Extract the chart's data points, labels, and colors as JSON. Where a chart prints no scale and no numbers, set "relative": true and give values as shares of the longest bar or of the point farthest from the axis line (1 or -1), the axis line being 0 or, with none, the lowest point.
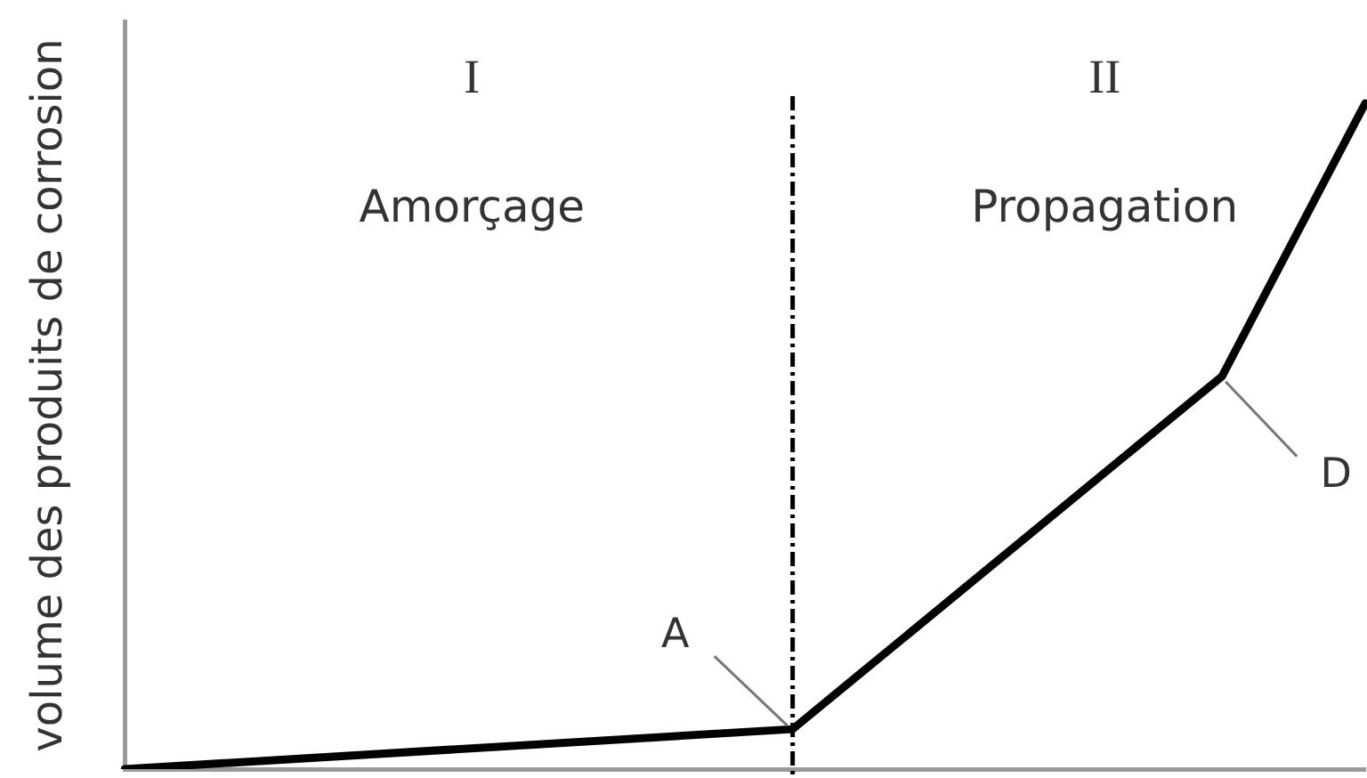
{
  "chart_data": {
    "type": "line",
    "ylabel": "volume des produits de corrosion",
    "categories": [
      null,
      null,
      null,
      null,
      null,
      null,
      null,
      null,
      null,
      null,
      null,
      null,
      null,
      null,
      null,
      null,
      null,
      null,
      null,
      null,
      null,
      null,
      null,
      null,
      null,
      null,
      null
    ],
    "series": [
      {
        "color": "#000000",
        "values": [
          0,
          null,
          null,
          null,
          null,
          null,
          null,
          null,
          null,
          null,
          null,
          null,
          null,
          null,
          0.06,
          null,
          null,
          null,
          null,
          null,
          null,
          null,
          null,
          0.59,
          null,
          null,
          1
        ]
      }
    ],
    "relative": true,
    "annotations": [
      "I",
      "Amorçage",
      "II",
      "Propagation",
      "A",
      "D"
    ],
    "marker": "none"
  }
}
